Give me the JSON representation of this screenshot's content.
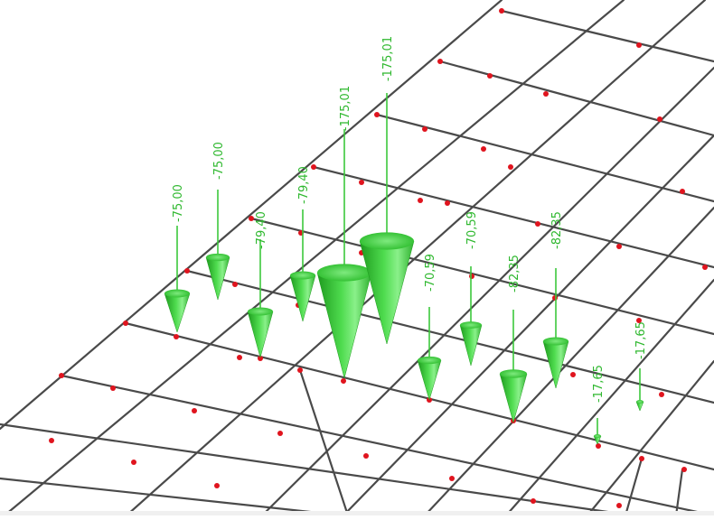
{
  "colors": {
    "background": "#ffffff",
    "grid": "#4a4a4a",
    "node": "#e0141e",
    "load": "#3cc83c",
    "load_dark": "#1e9a1e",
    "load_light": "#8af08a",
    "label": "#2fb82f"
  },
  "loads": [
    {
      "label": "-75,00"
    },
    {
      "label": "-75,00"
    },
    {
      "label": "-79,40"
    },
    {
      "label": "-79,40"
    },
    {
      "label": "-175,01"
    },
    {
      "label": "-175,01"
    },
    {
      "label": "-70,59"
    },
    {
      "label": "-70,59"
    },
    {
      "label": "-82,35"
    },
    {
      "label": "-82,35"
    },
    {
      "label": "-17,65"
    },
    {
      "label": "-17,65"
    }
  ]
}
